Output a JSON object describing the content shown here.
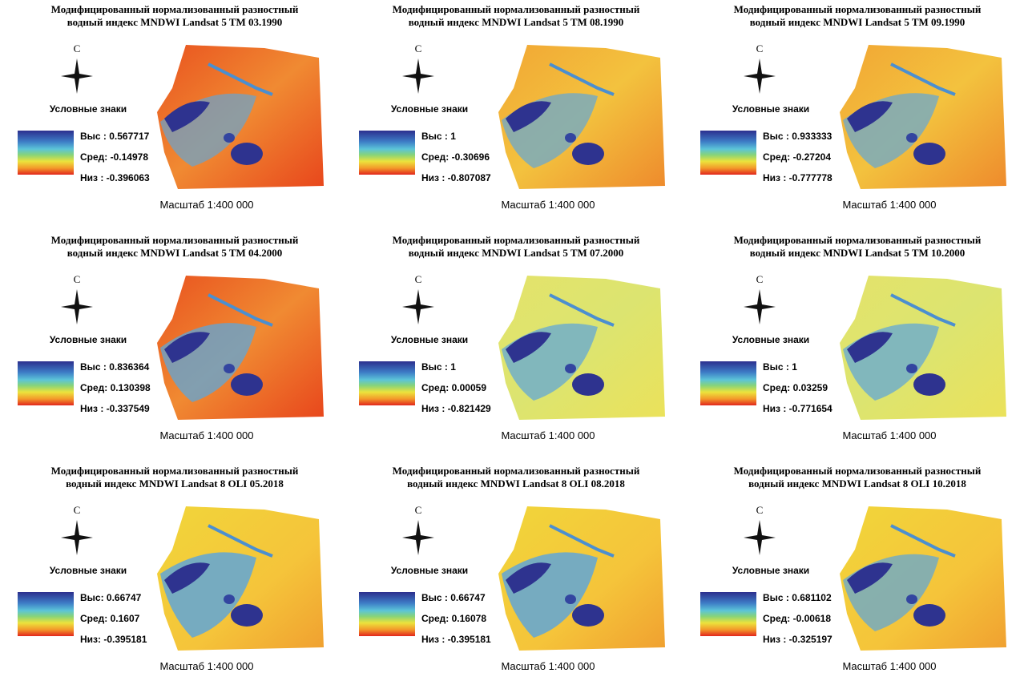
{
  "panels": [
    {
      "title_line1": "Модифицированный нормализованный разностный",
      "title_line2": "водный индекс MNDWI Landsat 5 TM 03.1990",
      "north": "С",
      "legend_title": "Условные знаки",
      "high": "Выс : 0.567717",
      "mid": "Сред: -0.14978",
      "low": "Низ : -0.396063",
      "scale": "Масштаб 1:400 000"
    },
    {
      "title_line1": "Модифицированный нормализованный разностный",
      "title_line2": "водный индекс MNDWI Landsat 5 TM 08.1990",
      "north": "С",
      "legend_title": "Условные знаки",
      "high": "Выс : 1",
      "mid": "Сред: -0.30696",
      "low": "Низ : -0.807087",
      "scale": "Масштаб 1:400 000"
    },
    {
      "title_line1": "Модифицированный нормализованный разностный",
      "title_line2": "водный индекс MNDWI Landsat 5 TM 09.1990",
      "north": "С",
      "legend_title": "Условные знаки",
      "high": "Выс : 0.933333",
      "mid": "Сред: -0.27204",
      "low": "Низ : -0.777778",
      "scale": "Масштаб 1:400 000"
    },
    {
      "title_line1": "Модифицированный нормализованный разностный",
      "title_line2": "водный индекс MNDWI Landsat 5 TM 04.2000",
      "north": "С",
      "legend_title": "Условные знаки",
      "high": "Выс : 0.836364",
      "mid": "Сред: 0.130398",
      "low": "Низ : -0.337549",
      "scale": "Масштаб 1:400 000"
    },
    {
      "title_line1": "Модифицированный нормализованный разностный",
      "title_line2": "водный индекс MNDWI Landsat 5 TM 07.2000",
      "north": "С",
      "legend_title": "Условные знаки",
      "high": "Выс : 1",
      "mid": "Сред: 0.00059",
      "low": "Низ : -0.821429",
      "scale": "Масштаб 1:400 000"
    },
    {
      "title_line1": "Модифицированный нормализованный разностный",
      "title_line2": "водный индекс MNDWI Landsat 5 TM 10.2000",
      "north": "С",
      "legend_title": "Условные знаки",
      "high": "Выс : 1",
      "mid": "Сред: 0.03259",
      "low": "Низ : -0.771654",
      "scale": "Масштаб 1:400 000"
    },
    {
      "title_line1": "Модифицированный нормализованный разностный",
      "title_line2": "водный индекс MNDWI Landsat 8 OLI 05.2018",
      "north": "С",
      "legend_title": "Условные знаки",
      "high": "Выс: 0.66747",
      "mid": "Сред: 0.1607",
      "low": "Низ: -0.395181",
      "scale": "Масштаб 1:400 000"
    },
    {
      "title_line1": "Модифицированный нормализованный разностный",
      "title_line2": "водный индекс MNDWI Landsat 8 OLI 08.2018",
      "north": "С",
      "legend_title": "Условные знаки",
      "high": "Выс : 0.66747",
      "mid": "Сред: 0.16078",
      "low": "Низ : -0.395181",
      "scale": "Масштаб 1:400 000"
    },
    {
      "title_line1": "Модифицированный нормализованный разностный",
      "title_line2": "водный индекс MNDWI Landsat 8 OLI 10.2018",
      "north": "С",
      "legend_title": "Условные знаки",
      "high": "Выс : 0.681102",
      "mid": "Сред: -0.00618",
      "low": "Низ : -0.325197",
      "scale": "Масштаб 1:400 000"
    }
  ]
}
